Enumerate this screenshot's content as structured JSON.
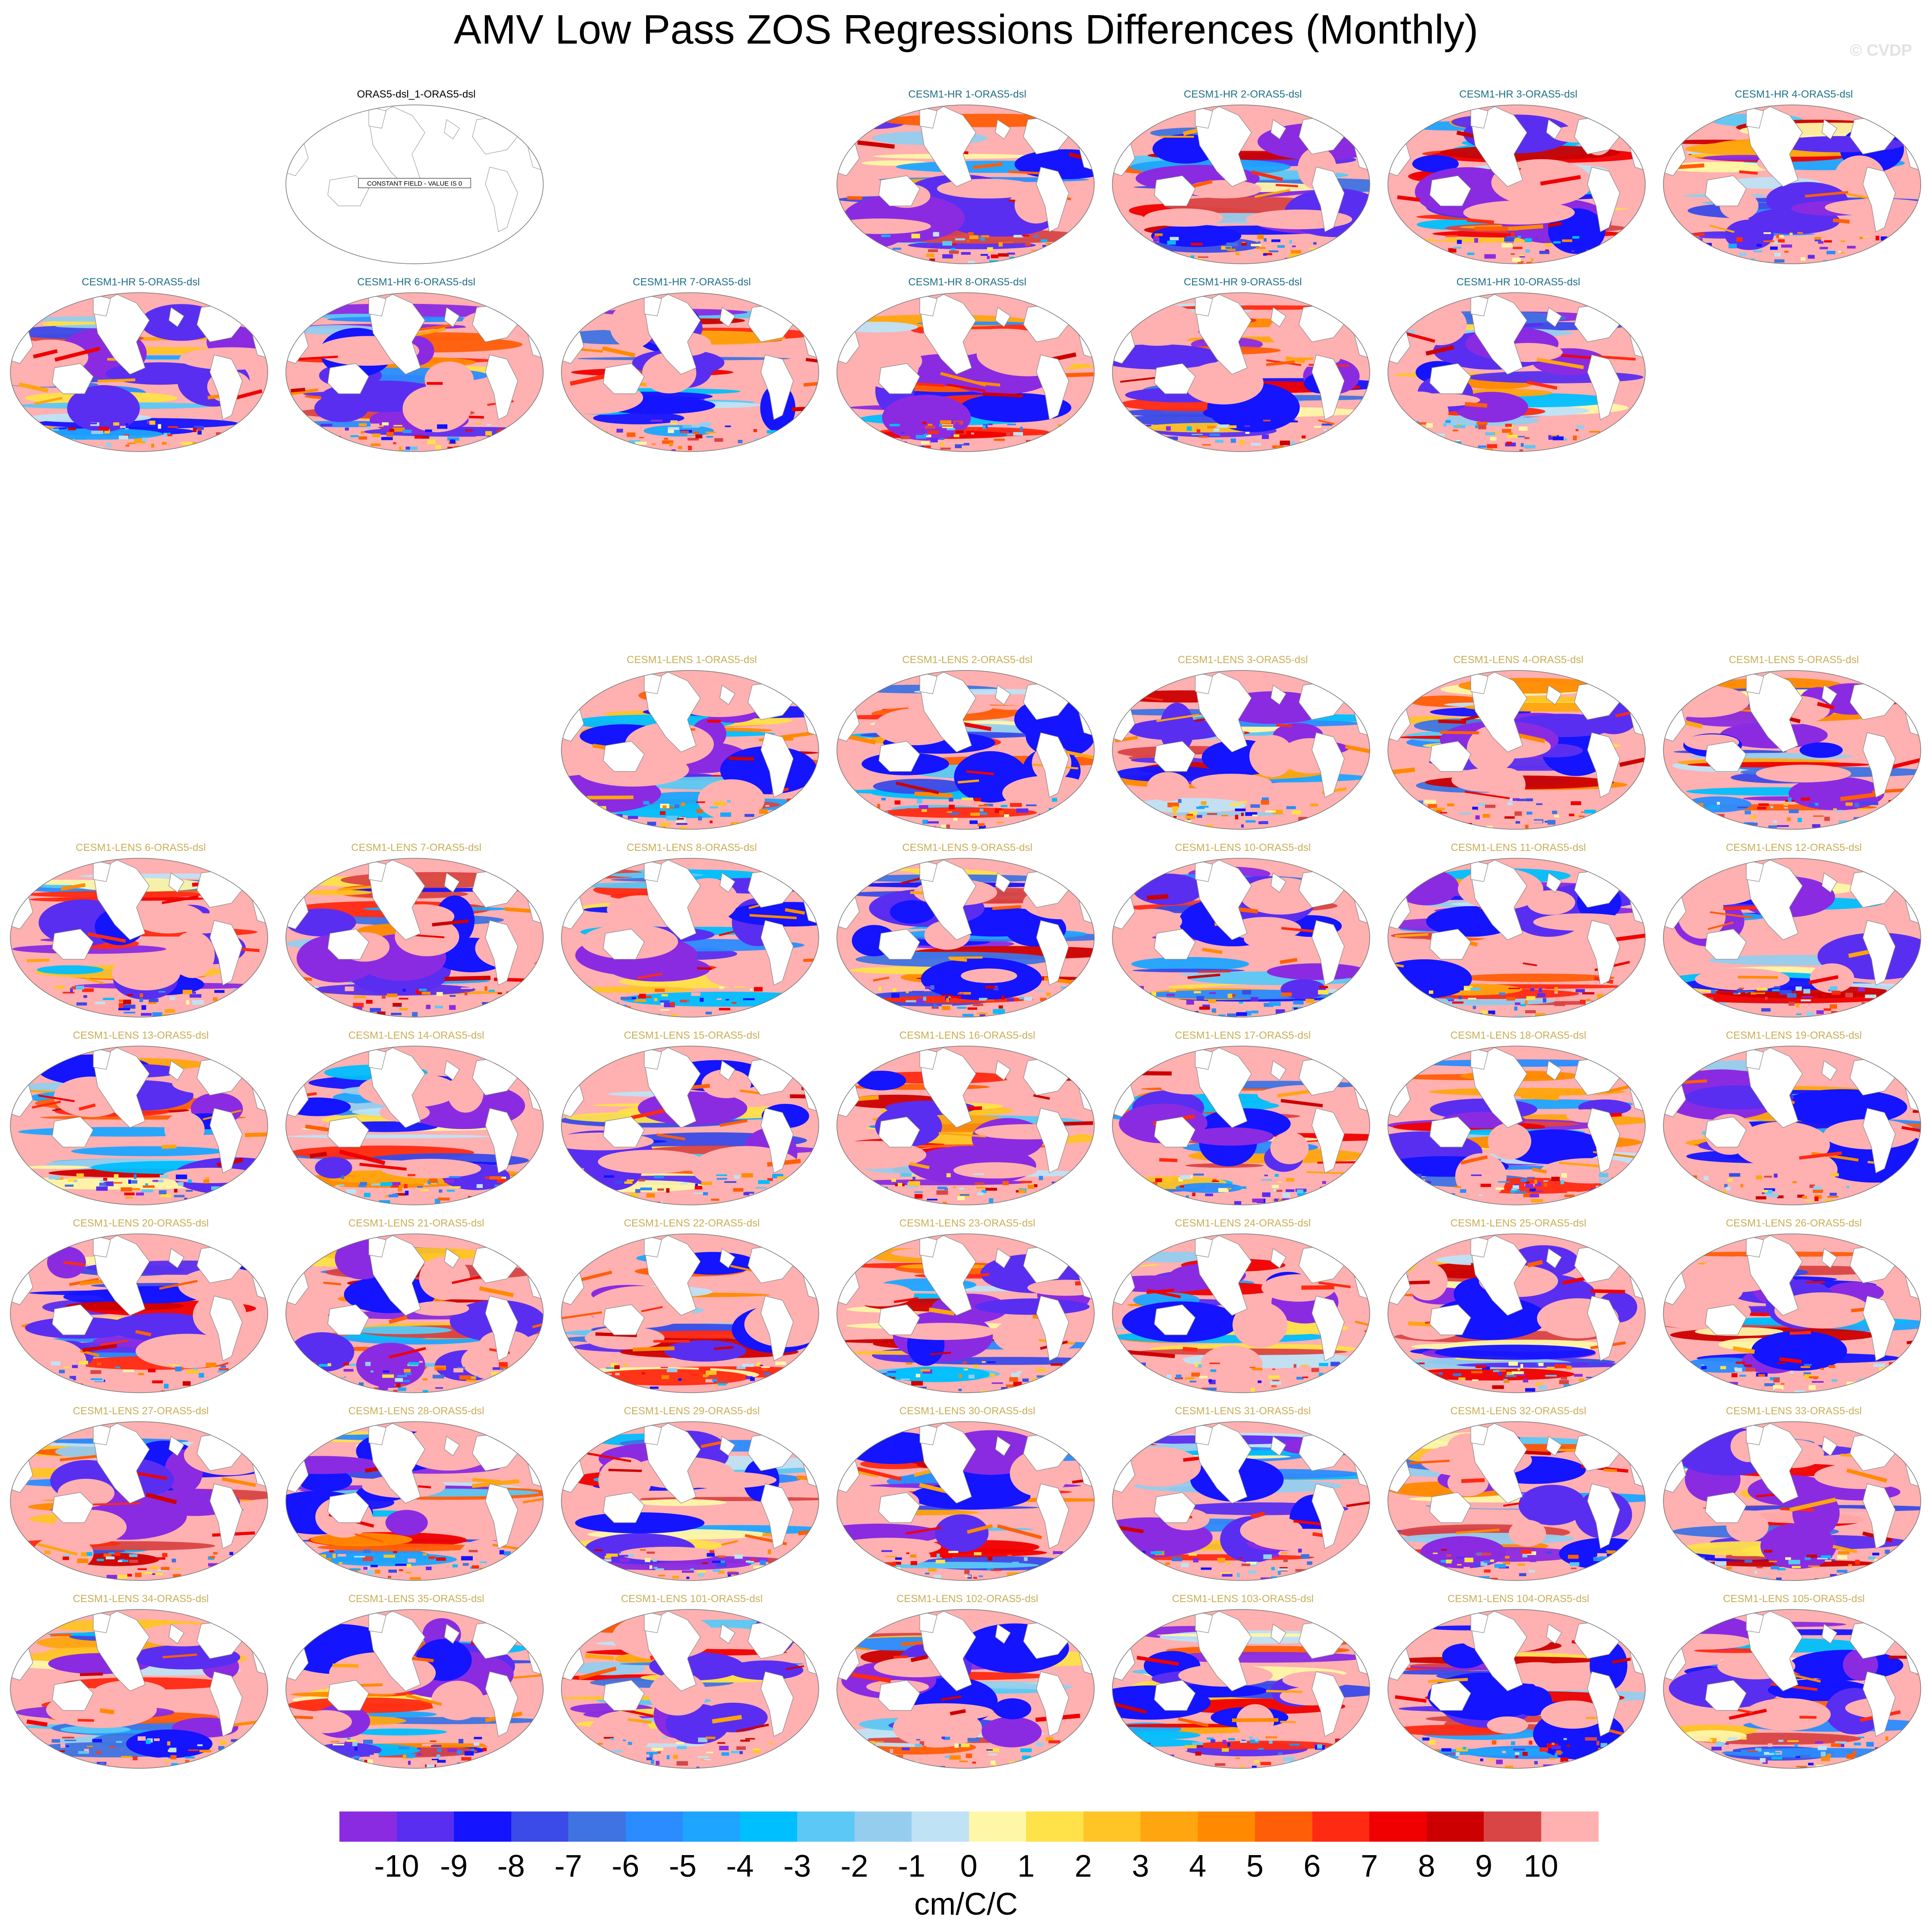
{
  "title": "AMV Low Pass ZOS Regressions Differences (Monthly)",
  "credit": "© CVDP",
  "observation_panel": {
    "title": "ORAS5-dsl_1-ORAS5-dsl",
    "note": "CONSTANT FIELD - VALUE IS 0"
  },
  "hr_panels": [
    "CESM1-HR 1-ORAS5-dsl",
    "CESM1-HR 2-ORAS5-dsl",
    "CESM1-HR 3-ORAS5-dsl",
    "CESM1-HR 4-ORAS5-dsl",
    "CESM1-HR 5-ORAS5-dsl",
    "CESM1-HR 6-ORAS5-dsl",
    "CESM1-HR 7-ORAS5-dsl",
    "CESM1-HR 8-ORAS5-dsl",
    "CESM1-HR 9-ORAS5-dsl",
    "CESM1-HR 10-ORAS5-dsl"
  ],
  "lens_panels": [
    "CESM1-LENS 1-ORAS5-dsl",
    "CESM1-LENS 2-ORAS5-dsl",
    "CESM1-LENS 3-ORAS5-dsl",
    "CESM1-LENS 4-ORAS5-dsl",
    "CESM1-LENS 5-ORAS5-dsl",
    "CESM1-LENS 6-ORAS5-dsl",
    "CESM1-LENS 7-ORAS5-dsl",
    "CESM1-LENS 8-ORAS5-dsl",
    "CESM1-LENS 9-ORAS5-dsl",
    "CESM1-LENS 10-ORAS5-dsl",
    "CESM1-LENS 11-ORAS5-dsl",
    "CESM1-LENS 12-ORAS5-dsl",
    "CESM1-LENS 13-ORAS5-dsl",
    "CESM1-LENS 14-ORAS5-dsl",
    "CESM1-LENS 15-ORAS5-dsl",
    "CESM1-LENS 16-ORAS5-dsl",
    "CESM1-LENS 17-ORAS5-dsl",
    "CESM1-LENS 18-ORAS5-dsl",
    "CESM1-LENS 19-ORAS5-dsl",
    "CESM1-LENS 20-ORAS5-dsl",
    "CESM1-LENS 21-ORAS5-dsl",
    "CESM1-LENS 22-ORAS5-dsl",
    "CESM1-LENS 23-ORAS5-dsl",
    "CESM1-LENS 24-ORAS5-dsl",
    "CESM1-LENS 25-ORAS5-dsl",
    "CESM1-LENS 26-ORAS5-dsl",
    "CESM1-LENS 27-ORAS5-dsl",
    "CESM1-LENS 28-ORAS5-dsl",
    "CESM1-LENS 29-ORAS5-dsl",
    "CESM1-LENS 30-ORAS5-dsl",
    "CESM1-LENS 31-ORAS5-dsl",
    "CESM1-LENS 32-ORAS5-dsl",
    "CESM1-LENS 33-ORAS5-dsl",
    "CESM1-LENS 34-ORAS5-dsl",
    "CESM1-LENS 35-ORAS5-dsl",
    "CESM1-LENS 101-ORAS5-dsl",
    "CESM1-LENS 102-ORAS5-dsl",
    "CESM1-LENS 103-ORAS5-dsl",
    "CESM1-LENS 104-ORAS5-dsl",
    "CESM1-LENS 105-ORAS5-dsl"
  ],
  "colorbar": {
    "colors": [
      "#8a2be2",
      "#5a2ef0",
      "#1414ff",
      "#3a4be8",
      "#3f73e2",
      "#2a8cff",
      "#1ea5ff",
      "#00bfff",
      "#5bc8f5",
      "#95cdee",
      "#bfe3f5",
      "#fff7a8",
      "#ffe24a",
      "#ffc425",
      "#ffa50f",
      "#ff8a00",
      "#ff5e08",
      "#ff2a12",
      "#f00000",
      "#cc0000",
      "#d94545",
      "#ffb0b0"
    ],
    "tick_labels": [
      "-10",
      "-9",
      "-8",
      "-7",
      "-6",
      "-5",
      "-4",
      "-3",
      "-2",
      "-1",
      "0",
      "1",
      "2",
      "3",
      "4",
      "5",
      "6",
      "7",
      "8",
      "9",
      "10"
    ],
    "units": "cm/C/C"
  },
  "colors": {
    "hr_title": "#1f6f86",
    "lens_title": "#c9ae57",
    "land": "#ffffff",
    "coast": "#888888"
  }
}
